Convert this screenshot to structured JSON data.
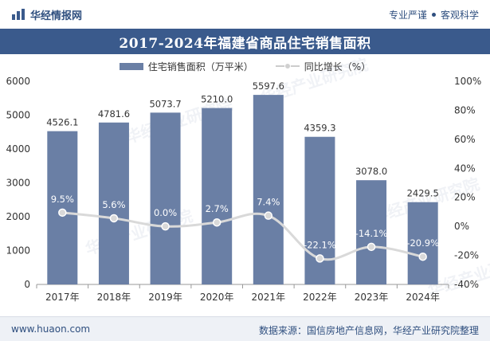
{
  "header": {
    "brand": "华经情报网",
    "slogan_left": "专业严谨",
    "slogan_right": "客观科学"
  },
  "footer": {
    "website": "www.huaon.com",
    "source": "数据来源：国信房地产信息网，华经产业研究院整理"
  },
  "watermark": "华经产业研究院",
  "colors": {
    "bar": "#6a7fa5",
    "line": "#d9d9d9",
    "title_bg": "#3a5a8c",
    "brand": "#2f4f7f"
  },
  "chart_data": {
    "type": "bar",
    "title": "2017-2024年福建省商品住宅销售面积",
    "categories": [
      "2017年",
      "2018年",
      "2019年",
      "2020年",
      "2021年",
      "2022年",
      "2023年",
      "2024年"
    ],
    "series": [
      {
        "name": "住宅销售面积（万平米）",
        "type": "bar",
        "axis": "left",
        "values": [
          4526.1,
          4781.6,
          5073.7,
          5210.0,
          5597.6,
          4359.3,
          3078.0,
          2429.5
        ],
        "labels": [
          "4526.1",
          "4781.6",
          "5073.7",
          "5210.0",
          "5597.6",
          "4359.3",
          "3078.0",
          "2429.5"
        ]
      },
      {
        "name": "同比增长（%）",
        "type": "line",
        "axis": "right",
        "values": [
          9.5,
          5.6,
          0.0,
          2.7,
          7.4,
          -22.1,
          -14.1,
          -20.9
        ],
        "labels": [
          "9.5%",
          "5.6%",
          "0.0%",
          "2.7%",
          "7.4%",
          "-22.1%",
          "-14.1%",
          "-20.9%"
        ]
      }
    ],
    "y_left": {
      "min": 0,
      "max": 6000,
      "ticks": [
        "0",
        "1000",
        "2000",
        "3000",
        "4000",
        "5000",
        "6000"
      ]
    },
    "y_right": {
      "min": -40,
      "max": 100,
      "ticks": [
        "-40%",
        "-20%",
        "0%",
        "20%",
        "40%",
        "60%",
        "80%",
        "100%"
      ]
    },
    "legend_position": "top-center",
    "grid": false
  }
}
